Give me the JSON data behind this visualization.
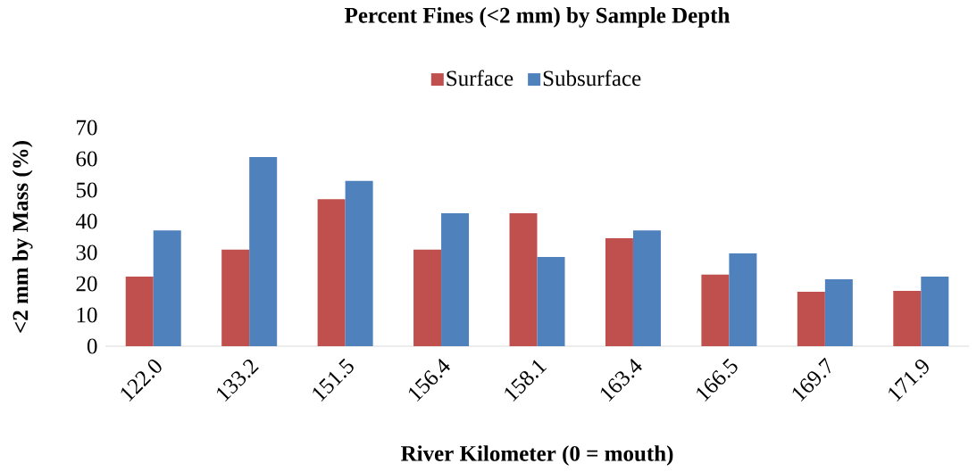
{
  "chart_data": {
    "type": "bar",
    "title": "Percent Fines (<2 mm) by Sample Depth",
    "xlabel": "River Kilometer (0 = mouth)",
    "ylabel": "<2 mm  by Mass (%)",
    "categories": [
      "122.0",
      "133.2",
      "151.5",
      "156.4",
      "158.1",
      "163.4",
      "166.5",
      "169.7",
      "171.9"
    ],
    "series": [
      {
        "name": "Surface",
        "color": "#c0504d",
        "values": [
          22.3,
          30.9,
          47.1,
          30.9,
          42.6,
          34.6,
          22.9,
          17.4,
          17.7
        ]
      },
      {
        "name": "Subsurface",
        "color": "#4f81bd",
        "values": [
          37.1,
          60.6,
          52.9,
          42.6,
          28.6,
          37.1,
          29.7,
          21.4,
          22.3
        ]
      }
    ],
    "ylim": [
      0,
      70
    ],
    "yticks": [
      0,
      10,
      20,
      30,
      40,
      50,
      60,
      70
    ],
    "legend": "top"
  }
}
